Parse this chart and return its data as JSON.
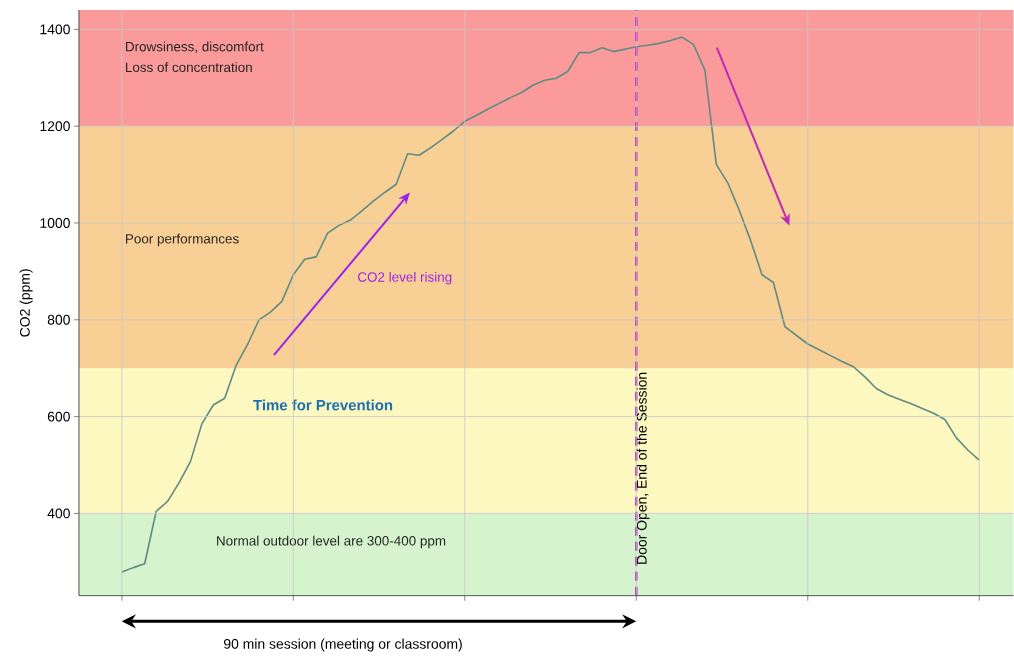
{
  "chart_data": {
    "type": "line",
    "ylabel": "CO2 (ppm)",
    "categories": [
      null,
      null,
      null,
      null,
      null,
      null,
      null,
      null,
      null,
      null,
      null,
      null,
      null,
      null,
      null,
      null,
      null,
      null,
      null,
      null,
      null,
      null,
      null,
      null,
      null,
      null,
      null,
      null,
      null,
      null,
      null,
      null,
      null,
      null,
      null,
      null,
      null,
      null,
      null,
      null,
      null,
      null,
      null,
      null,
      null,
      null,
      null,
      null,
      null,
      null,
      null,
      null,
      null,
      null,
      null,
      null,
      null,
      null,
      null,
      null,
      null,
      null,
      null,
      null,
      null,
      null,
      null,
      null,
      null,
      null,
      null,
      null,
      null,
      null,
      null,
      null
    ],
    "ylim": [
      230,
      1440
    ],
    "yticks": [
      400,
      600,
      800,
      1000,
      1200,
      1400
    ],
    "tick_labels": "y",
    "grid": true,
    "series": [
      {
        "color": "#5e8c84",
        "values": [
          279,
          288,
          296,
          404,
          425,
          463,
          507,
          585,
          624,
          638,
          706,
          749,
          800,
          816,
          838,
          893,
          925,
          930,
          979,
          995,
          1006,
          1025,
          1045,
          1063,
          1080,
          1143,
          1140,
          1155,
          1172,
          1190,
          1210,
          1222,
          1235,
          1247,
          1259,
          1270,
          1285,
          1295,
          1299,
          1313,
          1352,
          1352,
          1362,
          1354,
          1359,
          1364,
          1367,
          1371,
          1377,
          1384,
          1369,
          1316,
          1121,
          1083,
          1027,
          964,
          893,
          877,
          786,
          768,
          750,
          738,
          726,
          714,
          703,
          682,
          658,
          645,
          636,
          627,
          617,
          607,
          594,
          556,
          531,
          510
        ]
      }
    ],
    "bands": [
      {
        "axis": "y",
        "from": 230,
        "to": 400,
        "label": "Normal outdoor level are 300-400 ppm",
        "color": "#d5f3cc"
      },
      {
        "axis": "y",
        "from": 400,
        "to": 700,
        "label": "Time for Prevention",
        "color": "#fdf7c0"
      },
      {
        "axis": "y",
        "from": 700,
        "to": 1200,
        "label": "Poor performances",
        "color": "#f8cf94"
      },
      {
        "axis": "y",
        "from": 1200,
        "to": 1440,
        "label": "Drowsiness, discomfort",
        "color": "#fb9a9a"
      }
    ],
    "annotations": [
      "Loss of concentration",
      "CO2 level rising",
      "90 min session (meeting or classroom)",
      "Door Open, End of the Session"
    ]
  }
}
